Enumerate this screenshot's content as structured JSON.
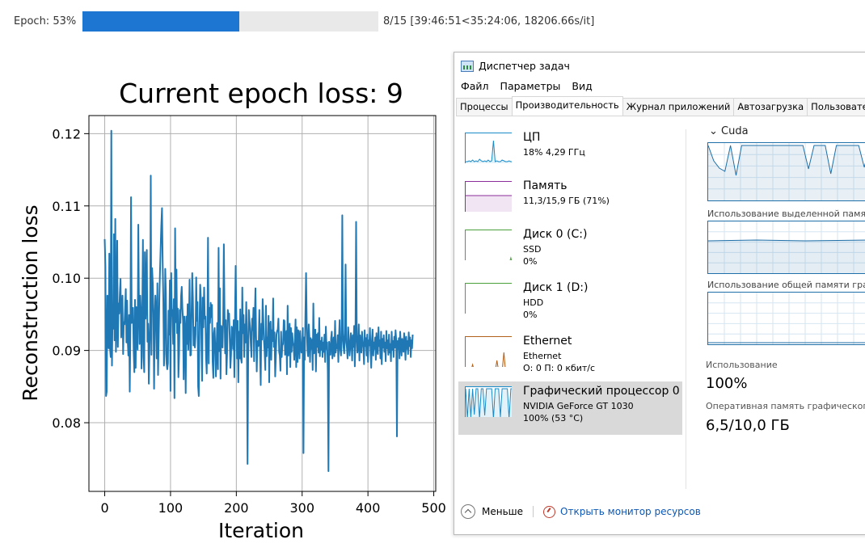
{
  "progress": {
    "label": "Epoch: 53%",
    "percent": 53,
    "stats": "8/15 [39:46:51<35:24:06, 18206.66s/it]",
    "fill_color": "#1c76d2",
    "track_color": "#e9e9e9"
  },
  "chart_data": {
    "type": "line",
    "title": "Current epoch loss: 9",
    "xlabel": "Iteration",
    "ylabel": "Reconstruction loss",
    "xlim": [
      -24,
      503
    ],
    "ylim": [
      0.0705,
      0.1225
    ],
    "xticks": [
      "0",
      "100",
      "200",
      "300",
      "400",
      "500"
    ],
    "xtick_values": [
      0,
      100,
      200,
      300,
      400,
      500
    ],
    "yticks": [
      "0.08",
      "0.09",
      "0.10",
      "0.11",
      "0.12"
    ],
    "ytick_values": [
      0.08,
      0.09,
      0.1,
      0.11,
      0.12
    ],
    "grid": true,
    "line_color": "#1f77b4",
    "series": [
      {
        "x_start": 0,
        "x_step": 1,
        "count": 480,
        "values": [
          0.1054,
          0.1016,
          0.0837,
          0.0843,
          0.0976,
          0.0965,
          0.0903,
          0.1034,
          0.0904,
          0.0891,
          0.1204,
          0.0879,
          0.0953,
          0.093,
          0.1061,
          0.0914,
          0.1082,
          0.0898,
          0.0945,
          0.1052,
          0.0905,
          0.0965,
          0.0951,
          0.098,
          0.0999,
          0.0918,
          0.0948,
          0.0976,
          0.0895,
          0.0939,
          0.0936,
          0.096,
          0.0985,
          0.0911,
          0.0969,
          0.0914,
          0.0893,
          0.0949,
          0.0843,
          0.0929,
          0.1112,
          0.0938,
          0.0939,
          0.0959,
          0.0898,
          0.087,
          0.097,
          0.0876,
          0.096,
          0.0927,
          0.0901,
          0.1074,
          0.0963,
          0.0909,
          0.0976,
          0.0952,
          0.0875,
          0.0941,
          0.1053,
          0.0891,
          0.087,
          0.1036,
          0.0944,
          0.0975,
          0.1039,
          0.0912,
          0.0937,
          0.0854,
          0.0902,
          0.0936,
          0.1142,
          0.0894,
          0.1014,
          0.0993,
          0.0951,
          0.0847,
          0.094,
          0.0976,
          0.0951,
          0.0889,
          0.0993,
          0.0866,
          0.0916,
          0.0971,
          0.1009,
          0.1041,
          0.1072,
          0.1097,
          0.1023,
          0.0972,
          0.0879,
          0.0895,
          0.1013,
          0.0979,
          0.0882,
          0.0874,
          0.0882,
          0.0955,
          0.0922,
          0.0997,
          0.0844,
          0.1007,
          0.0948,
          0.0956,
          0.0909,
          0.0971,
          0.0834,
          0.1069,
          0.0939,
          0.1012,
          0.0924,
          0.0958,
          0.0863,
          0.0895,
          0.0956,
          0.0938,
          0.0975,
          0.0988,
          0.0959,
          0.0941,
          0.086,
          0.0947,
          0.0925,
          0.0841,
          0.0947,
          0.0909,
          0.0964,
          0.0901,
          0.0936,
          0.0998,
          0.0893,
          0.0894,
          0.0955,
          0.1007,
          0.0973,
          0.0907,
          0.0932,
          0.0904,
          0.0922,
          0.1001,
          0.0941,
          0.0967,
          0.085,
          0.0837,
          0.0938,
          0.0991,
          0.0974,
          0.0911,
          0.0858,
          0.0973,
          0.0932,
          0.0987,
          0.0944,
          0.0947,
          0.089,
          0.0868,
          0.0926,
          0.1056,
          0.0882,
          0.0959,
          0.0938,
          0.0966,
          0.0946,
          0.0963,
          0.0885,
          0.0862,
          0.0924,
          0.0931,
          0.0901,
          0.0864,
          0.0903,
          0.0938,
          0.0874,
          0.1042,
          0.0899,
          0.0986,
          0.0861,
          0.0934,
          0.0931,
          0.0904,
          0.0943,
          0.1047,
          0.0955,
          0.0896,
          0.0942,
          0.0867,
          0.0895,
          0.0956,
          0.0948,
          0.0951,
          0.0915,
          0.0876,
          0.0894,
          0.0933,
          0.0928,
          0.0902,
          0.0942,
          0.0863,
          0.0944,
          0.1017,
          0.0949,
          0.0889,
          0.0941,
          0.0856,
          0.0926,
          0.0889,
          0.0957,
          0.089,
          0.0883,
          0.0987,
          0.0924,
          0.0949,
          0.0891,
          0.0936,
          0.0911,
          0.0967,
          0.0918,
          0.0743,
          0.0889,
          0.0956,
          0.0942,
          0.0931,
          0.0907,
          0.0891,
          0.0944,
          0.0928,
          0.0959,
          0.0885,
          0.0942,
          0.0986,
          0.0919,
          0.0871,
          0.0913,
          0.0906,
          0.0907,
          0.0956,
          0.0897,
          0.0852,
          0.0937,
          0.0915,
          0.0971,
          0.0943,
          0.0914,
          0.0899,
          0.0873,
          0.0962,
          0.0892,
          0.0918,
          0.0904,
          0.0948,
          0.0856,
          0.0935,
          0.094,
          0.0887,
          0.0928,
          0.0913,
          0.0972,
          0.0905,
          0.0925,
          0.0864,
          0.0891,
          0.0922,
          0.0927,
          0.0929,
          0.0944,
          0.0898,
          0.0893,
          0.0872,
          0.0926,
          0.0891,
          0.0907,
          0.0909,
          0.0942,
          0.0941,
          0.0894,
          0.0913,
          0.0927,
          0.0867,
          0.0962,
          0.0893,
          0.0909,
          0.0937,
          0.0877,
          0.0931,
          0.0898,
          0.0924,
          0.0911,
          0.0906,
          0.0887,
          0.0914,
          0.0943,
          0.0877,
          0.0932,
          0.0884,
          0.0928,
          0.0918,
          0.0889,
          0.0927,
          0.0908,
          0.0897,
          0.0901,
          0.0931,
          0.0758,
          0.0918,
          0.0887,
          0.0949,
          0.1007,
          0.0939,
          0.0901,
          0.0892,
          0.0936,
          0.0919,
          0.0884,
          0.0917,
          0.0902,
          0.0915,
          0.0873,
          0.0965,
          0.0896,
          0.0914,
          0.0929,
          0.0871,
          0.0922,
          0.0905,
          0.0924,
          0.0897,
          0.0945,
          0.0892,
          0.0913,
          0.0901,
          0.0918,
          0.0891,
          0.0911,
          0.0898,
          0.0922,
          0.0884,
          0.0933,
          0.0902,
          0.0911,
          0.0871,
          0.0733,
          0.0912,
          0.0903,
          0.0894,
          0.0917,
          0.0926,
          0.0889,
          0.0906,
          0.0918,
          0.0892,
          0.0941,
          0.0897,
          0.0908,
          0.0903,
          0.0921,
          0.0884,
          0.0916,
          0.0942,
          0.0901,
          0.0893,
          0.0913,
          0.1087,
          0.0924,
          0.0904,
          0.0896,
          0.0931,
          0.1019,
          0.0911,
          0.0904,
          0.0889,
          0.0932,
          0.0915,
          0.0893,
          0.0904,
          0.0924,
          0.0911,
          0.0886,
          0.0921,
          0.0905,
          0.0934,
          0.0878,
          0.0917,
          0.1078,
          0.0921,
          0.0897,
          0.0904,
          0.0936,
          0.0886,
          0.0921,
          0.0908,
          0.0897,
          0.0926,
          0.0914,
          0.0903,
          0.0881,
          0.0928,
          0.0906,
          0.0917,
          0.0893,
          0.0922,
          0.0884,
          0.0914,
          0.0907,
          0.0931,
          0.0899,
          0.0876,
          0.0912,
          0.0929,
          0.0893,
          0.0911,
          0.0902,
          0.0918,
          0.0887,
          0.0924,
          0.0902,
          0.0895,
          0.0932,
          0.0906,
          0.0914,
          0.0889,
          0.0926,
          0.0881,
          0.0916,
          0.0904,
          0.0921,
          0.0898,
          0.0911,
          0.0885,
          0.0927,
          0.0903,
          0.0914,
          0.0894,
          0.0922,
          0.0897,
          0.0909,
          0.0885,
          0.0926,
          0.0901,
          0.0913,
          0.0891,
          0.0919,
          0.0904,
          0.0928,
          0.0913,
          0.0781,
          0.0913,
          0.0902,
          0.0917,
          0.0889,
          0.0926,
          0.0907,
          0.0893,
          0.0916,
          0.0904,
          0.0898,
          0.0924,
          0.0911,
          0.0887,
          0.0919,
          0.0902,
          0.0913,
          0.0895,
          0.0925,
          0.0906,
          0.0918,
          0.0891,
          0.0914,
          0.0903,
          0.0922
        ]
      }
    ]
  },
  "task_manager": {
    "title": "Диспетчер задач",
    "menu": [
      "Файл",
      "Параметры",
      "Вид"
    ],
    "tabs": [
      "Процессы",
      "Производительность",
      "Журнал приложений",
      "Автозагрузка",
      "Пользователи"
    ],
    "active_tab": "Производительность",
    "resources": [
      {
        "name": "ЦП",
        "sub1": "18% 4,29 ГГц",
        "sub2": "",
        "color": "#1a8bc7"
      },
      {
        "name": "Память",
        "sub1": "11,3/15,9 ГБ (71%)",
        "sub2": "",
        "color": "#8b2d9a"
      },
      {
        "name": "Диск 0 (C:)",
        "sub1": "SSD",
        "sub2": "0%",
        "color": "#4aa03a"
      },
      {
        "name": "Диск 1 (D:)",
        "sub1": "HDD",
        "sub2": "0%",
        "color": "#4aa03a"
      },
      {
        "name": "Ethernet",
        "sub1": "Ethernet",
        "sub2": "О: 0 П: 0 кбит/с",
        "color": "#b0601a"
      },
      {
        "name": "Графический процессор 0",
        "sub1": "NVIDIA GeForce GT 1030",
        "sub2": "100% (53 °C)",
        "color": "#1a8bc7"
      }
    ],
    "selected_index": 5,
    "gpu_panel": {
      "engine": "Cuda",
      "dedicated_caption": "Использование выделенной памяти",
      "shared_caption": "Использование общей памяти граф",
      "usage_label": "Использование",
      "usage_value": "100%",
      "memory_label": "Оперативная память графического",
      "memory_value": "6,5/10,0 ГБ",
      "line_color": "#1f6fa8"
    },
    "footer": {
      "less_label": "Меньше",
      "link_label": "Открыть монитор ресурсов"
    }
  }
}
